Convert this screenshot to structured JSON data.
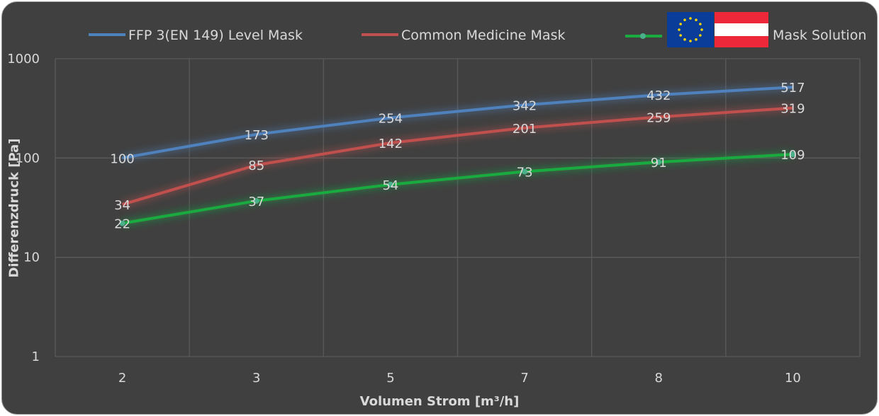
{
  "chart_data": {
    "type": "line",
    "xlabel": "Volumen Strom [m³/h]",
    "ylabel": "Differenzdruck [Pa]",
    "yscale": "log",
    "ylim": [
      1,
      1000
    ],
    "yticks": [
      "1",
      "10",
      "100",
      "1000"
    ],
    "categories": [
      "2",
      "3",
      "5",
      "7",
      "8",
      "10"
    ],
    "grid": true,
    "legend_position": "top",
    "series": [
      {
        "name": "FFP 3(EN 149) Level Mask",
        "color": "#4f81bd",
        "values": [
          100,
          173,
          254,
          342,
          432,
          517
        ]
      },
      {
        "name": "Common Medicine Mask",
        "color": "#c0504d",
        "values": [
          34,
          85,
          142,
          201,
          259,
          319
        ]
      },
      {
        "name": "Mask Solution",
        "color": "#1aab40",
        "values": [
          22,
          37,
          54,
          73,
          91,
          109
        ]
      }
    ]
  },
  "legend_icons": {
    "mask_solution": [
      "eu-flag-icon",
      "austria-flag-icon"
    ]
  },
  "colors": {
    "background": "#404040",
    "grid": "#5a5a5a",
    "text": "#d9d9d9"
  }
}
